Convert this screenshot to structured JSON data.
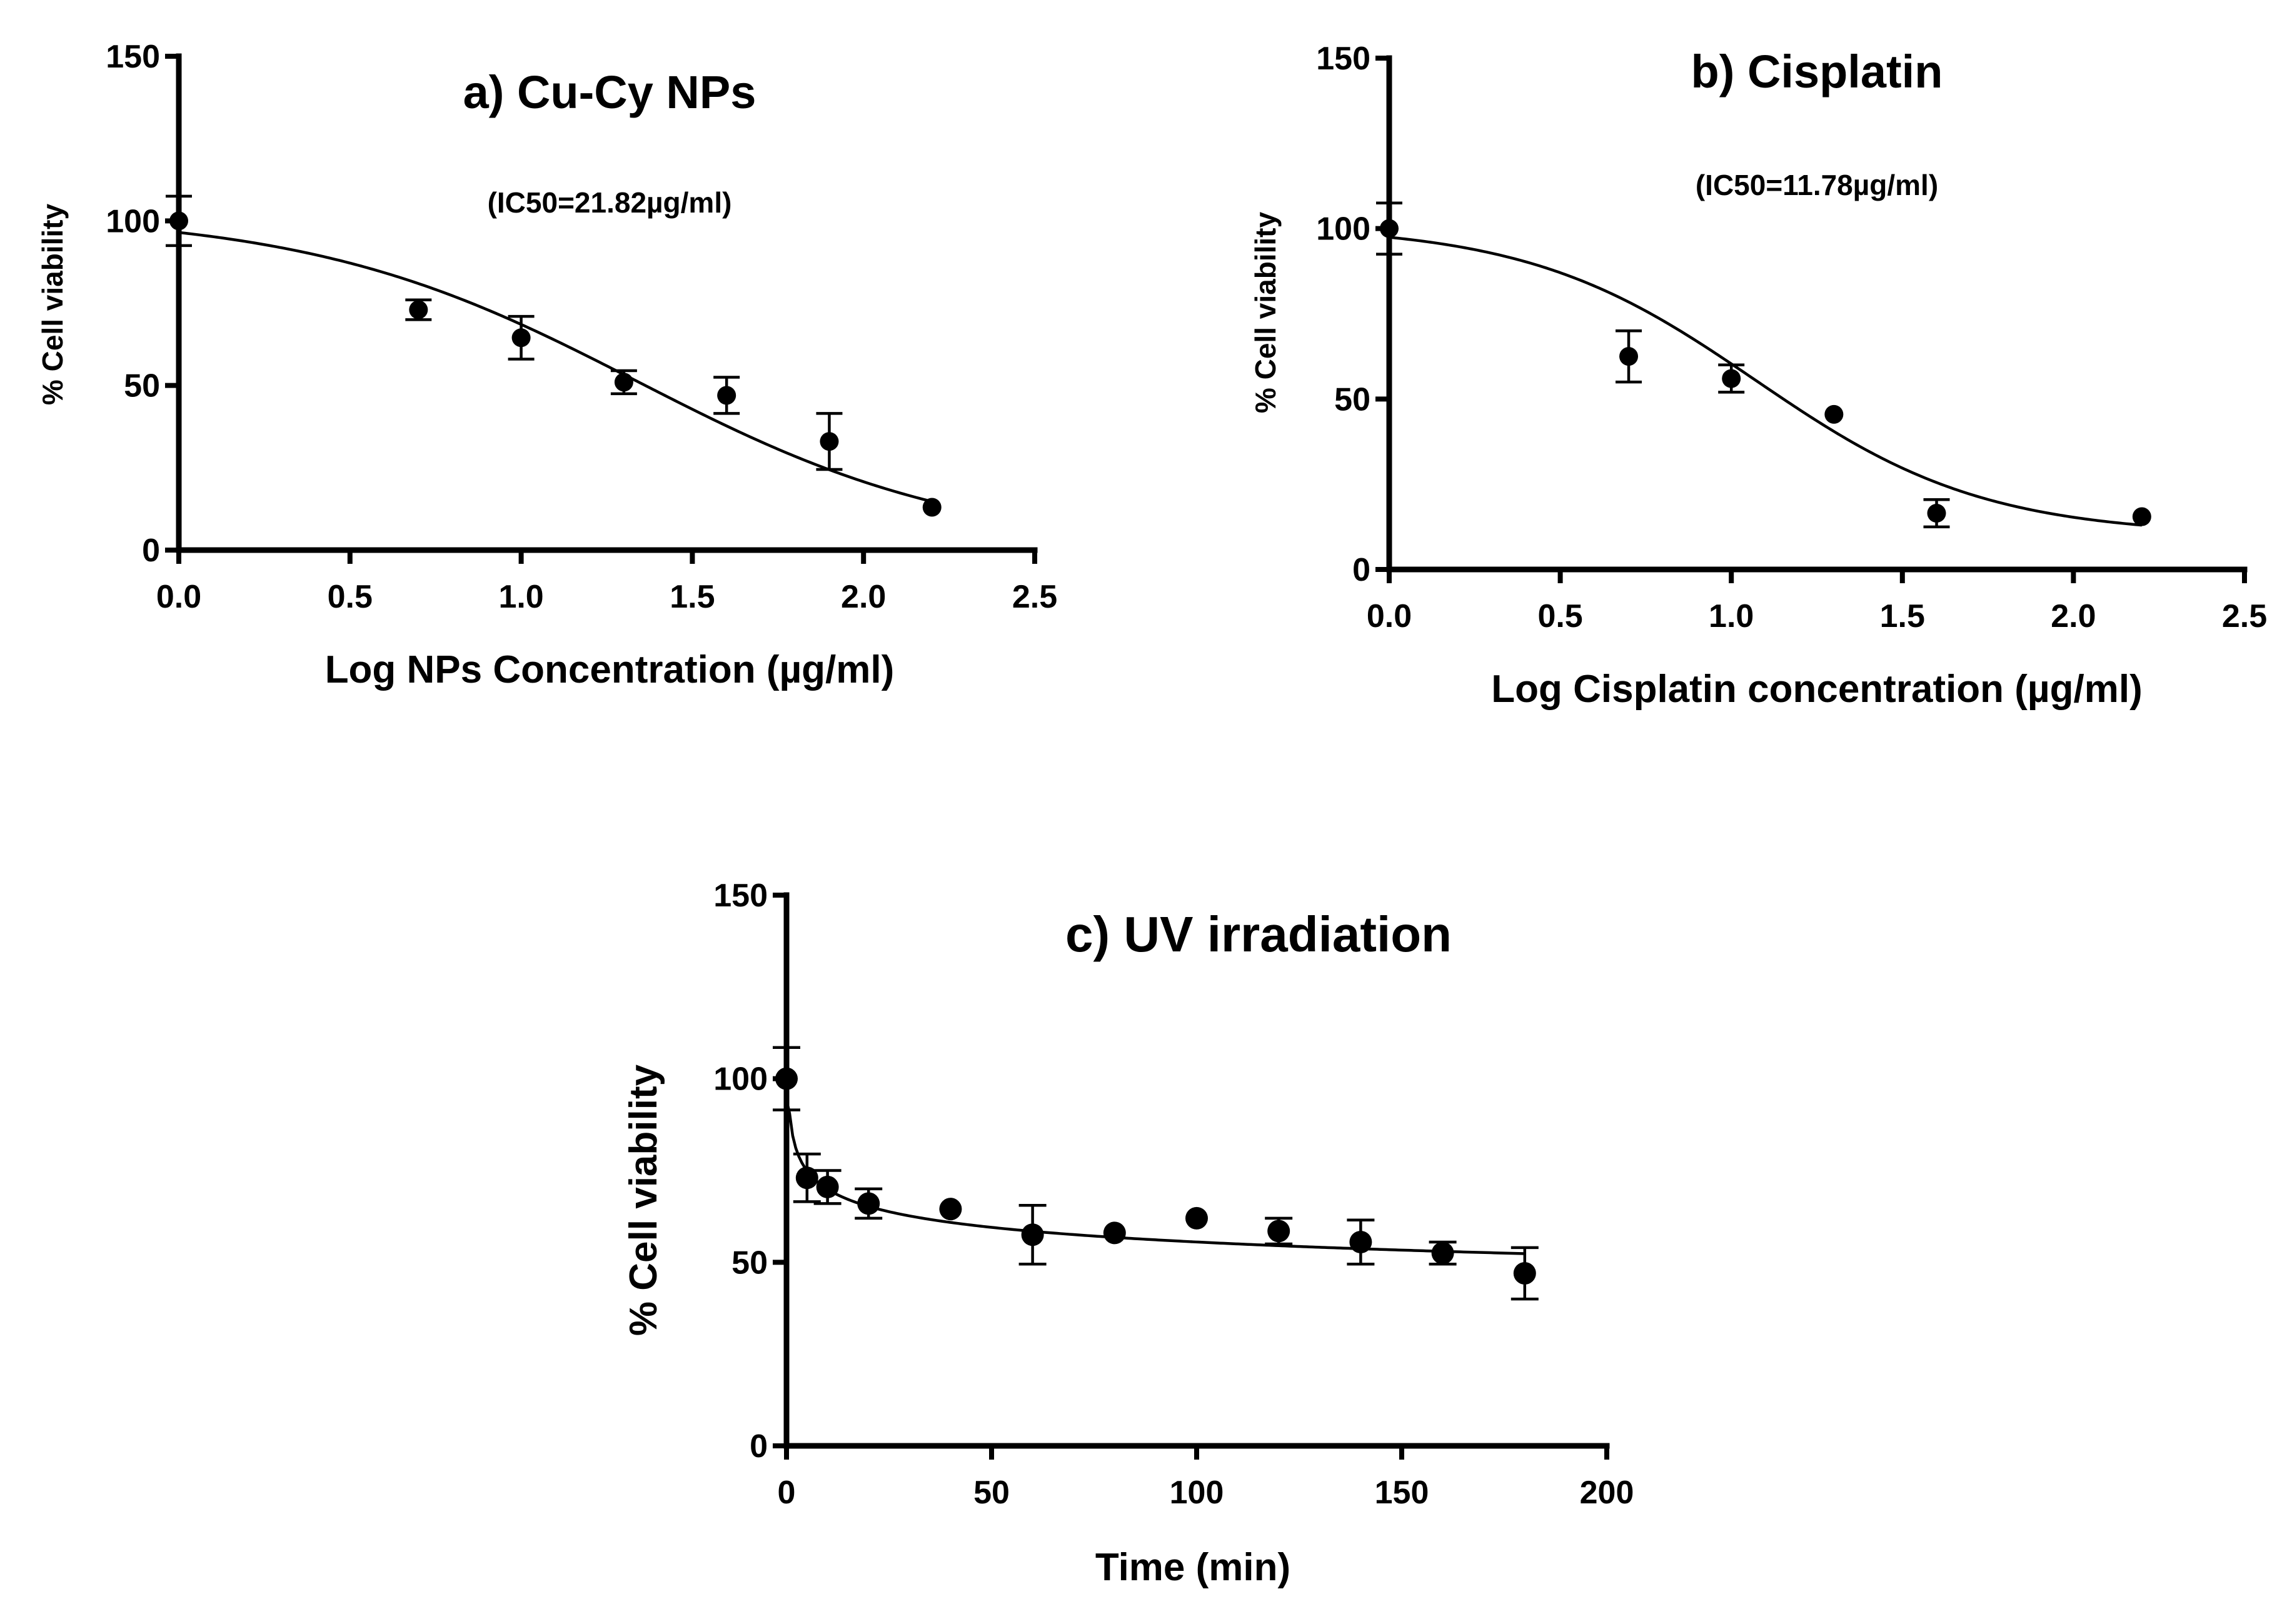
{
  "chart_data": [
    {
      "id": "a",
      "type": "scatter",
      "title": "a) Cu-Cy NPs",
      "annotation": "(IC50=21.82µg/ml)",
      "xlabel": "Log NPs Concentration (µg/ml)",
      "ylabel": "% Cell viability",
      "xlim": [
        0,
        2.5
      ],
      "ylim": [
        0,
        150
      ],
      "xticks": [
        0,
        0.5,
        1,
        1.5,
        2,
        2.5
      ],
      "xtick_labels": [
        "0.0",
        "0.5",
        "1.0",
        "1.5",
        "2.0",
        "2.5"
      ],
      "yticks": [
        0,
        50,
        100,
        150
      ],
      "ytick_labels": [
        "0",
        "50",
        "100",
        "150"
      ],
      "grid": false,
      "points": [
        {
          "x": 0.0,
          "y": 100,
          "err": 7.5
        },
        {
          "x": 0.7,
          "y": 73,
          "err": 3
        },
        {
          "x": 1.0,
          "y": 64.5,
          "err": 6.5
        },
        {
          "x": 1.3,
          "y": 51,
          "err": 3.5
        },
        {
          "x": 1.6,
          "y": 47,
          "err": 5.5
        },
        {
          "x": 1.9,
          "y": 33,
          "err": 8.5
        },
        {
          "x": 2.2,
          "y": 13,
          "err": 0
        }
      ],
      "fit": {
        "model": "four_parameter_logistic",
        "top": 102.5,
        "bottom": 0,
        "log_ic50": 1.3389,
        "hill": 0.9,
        "x_range": [
          0,
          2.2
        ]
      }
    },
    {
      "id": "b",
      "type": "scatter",
      "title": "b) Cisplatin",
      "annotation": "(IC50=11.78µg/ml)",
      "xlabel": "Log Cisplatin concentration (µg/ml)",
      "ylabel": "% Cell viability",
      "xlim": [
        0,
        2.5
      ],
      "ylim": [
        0,
        150
      ],
      "xticks": [
        0,
        0.5,
        1,
        1.5,
        2,
        2.5
      ],
      "xtick_labels": [
        "0.0",
        "0.5",
        "1.0",
        "1.5",
        "2.0",
        "2.5"
      ],
      "yticks": [
        0,
        50,
        100,
        150
      ],
      "ytick_labels": [
        "0",
        "50",
        "100",
        "150"
      ],
      "grid": false,
      "points": [
        {
          "x": 0.0,
          "y": 100,
          "err": 7.5
        },
        {
          "x": 0.7,
          "y": 62.5,
          "err": 7.5
        },
        {
          "x": 1.0,
          "y": 56,
          "err": 4
        },
        {
          "x": 1.3,
          "y": 45.5,
          "err": 0
        },
        {
          "x": 1.6,
          "y": 16.5,
          "err": 4
        },
        {
          "x": 2.2,
          "y": 15.5,
          "err": 0
        }
      ],
      "fit": {
        "model": "four_parameter_logistic",
        "top": 101,
        "bottom": 10,
        "log_ic50": 1.071,
        "hill": 1.3,
        "x_range": [
          0,
          2.2
        ]
      }
    },
    {
      "id": "c",
      "type": "scatter",
      "title": "c) UV irradiation",
      "xlabel": "Time (min)",
      "ylabel": "% Cell viability",
      "xlim": [
        0,
        200
      ],
      "ylim": [
        0,
        150
      ],
      "xticks": [
        0,
        50,
        100,
        150,
        200
      ],
      "xtick_labels": [
        "0",
        "50",
        "100",
        "150",
        "200"
      ],
      "yticks": [
        0,
        50,
        100,
        150
      ],
      "ytick_labels": [
        "0",
        "50",
        "100",
        "150"
      ],
      "grid": false,
      "points": [
        {
          "x": 0,
          "y": 100,
          "err": 8.5
        },
        {
          "x": 5,
          "y": 73,
          "err": 6.5
        },
        {
          "x": 10,
          "y": 70.5,
          "err": 4.5
        },
        {
          "x": 20,
          "y": 66,
          "err": 4
        },
        {
          "x": 40,
          "y": 64.5,
          "err": 0
        },
        {
          "x": 60,
          "y": 57.5,
          "err": 8
        },
        {
          "x": 80,
          "y": 58,
          "err": 0
        },
        {
          "x": 100,
          "y": 62,
          "err": 0
        },
        {
          "x": 120,
          "y": 58.5,
          "err": 3.5
        },
        {
          "x": 140,
          "y": 55.5,
          "err": 6
        },
        {
          "x": 160,
          "y": 52.5,
          "err": 3
        },
        {
          "x": 180,
          "y": 47,
          "err": 7
        }
      ],
      "fit": {
        "model": "power_decay",
        "a": 88,
        "b": 0.1,
        "x_start": 0.5,
        "x_range": [
          0,
          180
        ]
      }
    }
  ]
}
